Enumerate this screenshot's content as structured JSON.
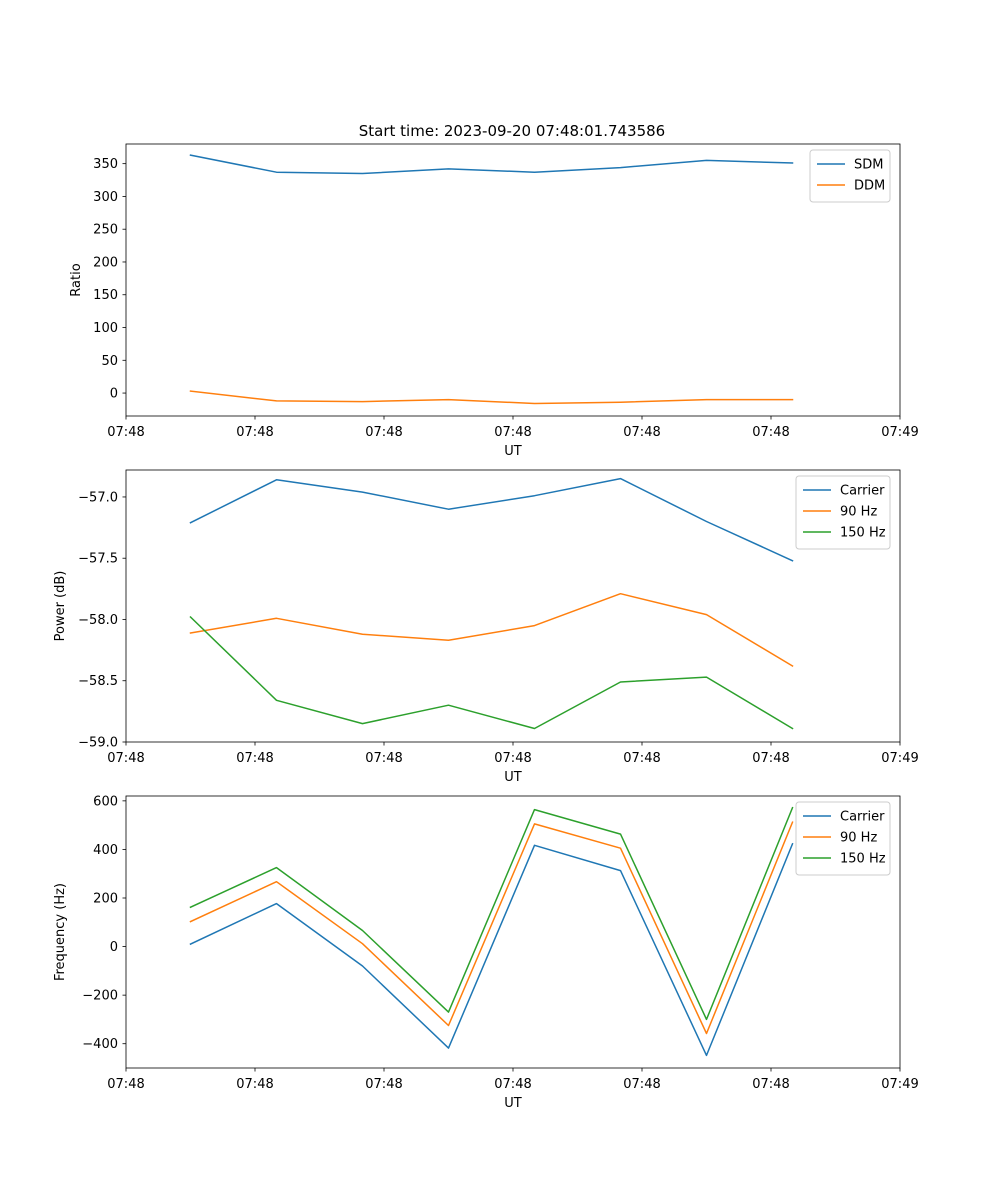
{
  "figure_title": "Start time: 2023-09-20 07:48:01.743586",
  "chart_data": [
    {
      "type": "line",
      "title": "Start time: 2023-09-20 07:48:01.743586",
      "xlabel": "UT",
      "ylabel": "Ratio",
      "xlim": [
        0,
        9
      ],
      "ylim": [
        -35,
        380
      ],
      "xticks": [
        0,
        1.5,
        3,
        4.5,
        6,
        7.5,
        9
      ],
      "xtick_labels": [
        "07:48",
        "07:48",
        "07:48",
        "07:48",
        "07:48",
        "07:48",
        "07:49"
      ],
      "yticks": [
        0,
        50,
        100,
        150,
        200,
        250,
        300,
        350
      ],
      "ytick_labels": [
        "0",
        "50",
        "100",
        "150",
        "200",
        "250",
        "300",
        "350"
      ],
      "x": [
        0.75,
        1.75,
        2.75,
        3.75,
        4.75,
        5.75,
        6.75,
        7.75
      ],
      "series": [
        {
          "name": "SDM",
          "color": "#1f77b4",
          "values": [
            363,
            337,
            335,
            342,
            337,
            344,
            355,
            351
          ]
        },
        {
          "name": "DDM",
          "color": "#ff7f0e",
          "values": [
            3,
            -12,
            -13,
            -10,
            -16,
            -14,
            -10,
            -10
          ]
        }
      ],
      "legend_position": "top-right"
    },
    {
      "type": "line",
      "xlabel": "UT",
      "ylabel": "Power (dB)",
      "xlim": [
        0,
        9
      ],
      "ylim": [
        -59.0,
        -56.78
      ],
      "xticks": [
        0,
        1.5,
        3,
        4.5,
        6,
        7.5,
        9
      ],
      "xtick_labels": [
        "07:48",
        "07:48",
        "07:48",
        "07:48",
        "07:48",
        "07:48",
        "07:49"
      ],
      "yticks": [
        -59.0,
        -58.5,
        -58.0,
        -57.5,
        -57.0
      ],
      "ytick_labels": [
        "−59.0",
        "−58.5",
        "−58.0",
        "−57.5",
        "−57.0"
      ],
      "x": [
        0.75,
        1.75,
        2.75,
        3.75,
        4.75,
        5.75,
        6.75,
        7.75
      ],
      "series": [
        {
          "name": "Carrier",
          "color": "#1f77b4",
          "values": [
            -57.21,
            -56.86,
            -56.96,
            -57.1,
            -56.99,
            -56.85,
            -57.2,
            -57.52
          ]
        },
        {
          "name": "90 Hz",
          "color": "#ff7f0e",
          "values": [
            -58.11,
            -57.99,
            -58.12,
            -58.17,
            -58.05,
            -57.79,
            -57.96,
            -58.38
          ]
        },
        {
          "name": "150 Hz",
          "color": "#2ca02c",
          "values": [
            -57.98,
            -58.66,
            -58.85,
            -58.7,
            -58.89,
            -58.51,
            -58.47,
            -58.89
          ]
        }
      ],
      "legend_position": "top-right"
    },
    {
      "type": "line",
      "xlabel": "UT",
      "ylabel": "Frequency (Hz)",
      "xlim": [
        0,
        9
      ],
      "ylim": [
        -500,
        620
      ],
      "xticks": [
        0,
        1.5,
        3,
        4.5,
        6,
        7.5,
        9
      ],
      "xtick_labels": [
        "07:48",
        "07:48",
        "07:48",
        "07:48",
        "07:48",
        "07:48",
        "07:49"
      ],
      "yticks": [
        -400,
        -200,
        0,
        200,
        400,
        600
      ],
      "ytick_labels": [
        "−400",
        "−200",
        "0",
        "200",
        "400",
        "600"
      ],
      "x": [
        0.75,
        1.75,
        2.75,
        3.75,
        4.75,
        5.75,
        6.75,
        7.75
      ],
      "series": [
        {
          "name": "Carrier",
          "color": "#1f77b4",
          "values": [
            10,
            177,
            -80,
            -418,
            417,
            313,
            -448,
            423
          ]
        },
        {
          "name": "90 Hz",
          "color": "#ff7f0e",
          "values": [
            103,
            267,
            12,
            -325,
            505,
            405,
            -358,
            512
          ]
        },
        {
          "name": "150 Hz",
          "color": "#2ca02c",
          "values": [
            162,
            325,
            66,
            -270,
            564,
            463,
            -300,
            572
          ]
        }
      ],
      "legend_position": "top-right"
    }
  ]
}
